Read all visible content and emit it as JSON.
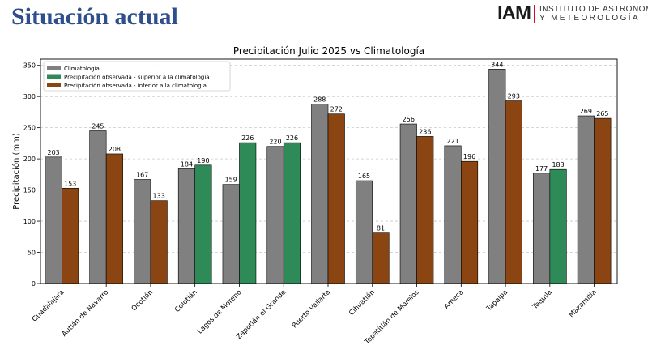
{
  "slide": {
    "title": "Situación actual",
    "logo_mark": "IAM",
    "logo_line1": "INSTITUTO DE ASTRONOMÍA",
    "logo_line2": "Y METEOROLOGÍA"
  },
  "colors": {
    "climatology": "#808080",
    "above": "#2e8b57",
    "below": "#8b4513",
    "grid": "#c8c8c8",
    "slide_title": "#2e4e8c"
  },
  "chart_data": {
    "type": "bar",
    "title": "Precipitación Julio 2025 vs Climatología",
    "xlabel": "",
    "ylabel": "Precipitación (mm)",
    "ylim": [
      0,
      360
    ],
    "yticks": [
      0,
      50,
      100,
      150,
      200,
      250,
      300,
      350
    ],
    "grid": true,
    "legend_position": "top-left",
    "legend": [
      {
        "label": "Climatología",
        "color": "#808080"
      },
      {
        "label": "Precipitación observada - superior a la climatología",
        "color": "#2e8b57"
      },
      {
        "label": "Precipitación observada - inferior a la climatología",
        "color": "#8b4513"
      }
    ],
    "categories": [
      "Guadalajara",
      "Autlán de Navarro",
      "Ocotlán",
      "Colotlán",
      "Lagos de Moreno",
      "Zapotlán el Grande",
      "Puerto Vallarta",
      "Cihuatlán",
      "Tepatitlán de Morelos",
      "Ameca",
      "Tapalpa",
      "Tequila",
      "Mazamitla"
    ],
    "series": [
      {
        "name": "Climatología",
        "values": [
          203,
          245,
          167,
          184,
          159,
          220,
          288,
          165,
          256,
          221,
          344,
          177,
          269
        ]
      },
      {
        "name": "Precipitación observada",
        "values": [
          153,
          208,
          133,
          190,
          226,
          226,
          272,
          81,
          236,
          196,
          293,
          183,
          265
        ]
      }
    ]
  }
}
